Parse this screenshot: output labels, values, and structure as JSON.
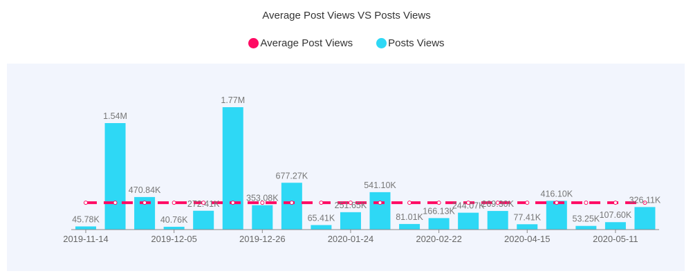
{
  "chart_data": {
    "type": "bar",
    "title": "Average Post Views VS Posts Views",
    "legend_position": "top",
    "categories": [
      "2019-11-14",
      "",
      "",
      "2019-12-05",
      "",
      "",
      "2019-12-26",
      "",
      "",
      "2020-01-24",
      "",
      "",
      "2020-02-22",
      "",
      "",
      "2020-04-15",
      "",
      "",
      "2020-05-11",
      ""
    ],
    "series": [
      {
        "name": "Average Post Views",
        "type": "line",
        "style": "dashed",
        "color": "#ff0a63",
        "values": [
          388.46,
          388.46,
          388.46,
          388.46,
          388.46,
          388.46,
          388.46,
          388.46,
          388.46,
          388.46,
          388.46,
          388.46,
          388.46,
          388.46,
          388.46,
          388.46,
          388.46,
          388.46,
          388.46,
          388.46
        ]
      },
      {
        "name": "Posts Views",
        "type": "bar",
        "color": "#2ed8f5",
        "values": [
          45.78,
          1540,
          470.84,
          40.76,
          272.41,
          1770,
          353.08,
          677.27,
          65.41,
          251.65,
          541.1,
          81.01,
          166.13,
          244.07,
          269.3,
          77.41,
          416.1,
          53.25,
          107.6,
          326.11
        ],
        "labels": [
          "45.78K",
          "1.54M",
          "470.84K",
          "40.76K",
          "272.41K",
          "1.77M",
          "353.08K",
          "677.27K",
          "65.41K",
          "251.65K",
          "541.10K",
          "81.01K",
          "166.13K",
          "244.07K",
          "269.30K",
          "77.41K",
          "416.10K",
          "53.25K",
          "107.60K",
          "326.11K"
        ]
      }
    ],
    "unit": "K",
    "grid": false
  }
}
